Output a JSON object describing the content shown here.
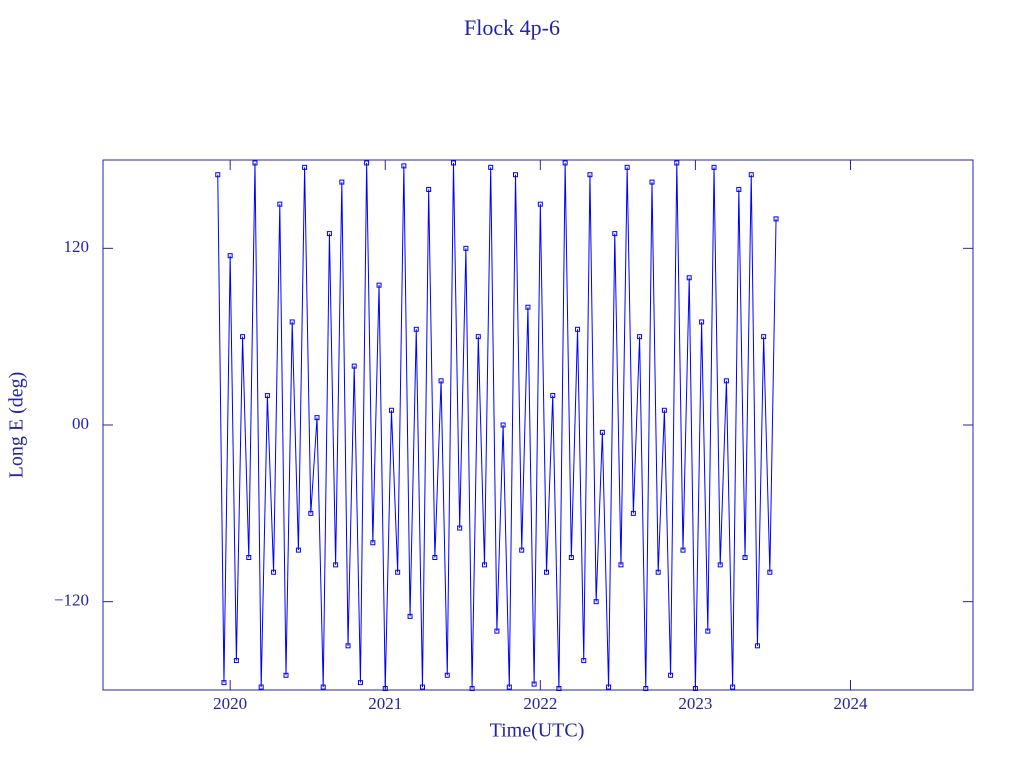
{
  "chart_data": {
    "type": "line",
    "title": "Flock 4p-6",
    "xlabel": "Time(UTC)",
    "ylabel": "Long E (deg)",
    "xlim": [
      2019.18,
      2024.79
    ],
    "xticks": [
      2020,
      2021,
      2022,
      2023,
      2024
    ],
    "ylim": [
      -180,
      180
    ],
    "yticks": [
      {
        "value": -120,
        "label": "−120"
      },
      {
        "value": 0,
        "label": "00"
      },
      120
    ],
    "x": [
      2019.92,
      2019.96,
      2020,
      2020.04,
      2020.08,
      2020.12,
      2020.16,
      2020.2,
      2020.24,
      2020.28,
      2020.32,
      2020.36,
      2020.4,
      2020.44,
      2020.48,
      2020.52,
      2020.56,
      2020.6,
      2020.64,
      2020.68,
      2020.72,
      2020.76,
      2020.8,
      2020.84,
      2020.88,
      2020.92,
      2020.96,
      2021,
      2021.04,
      2021.08,
      2021.12,
      2021.16,
      2021.2,
      2021.24,
      2021.28,
      2021.32,
      2021.36,
      2021.4,
      2021.44,
      2021.48,
      2021.52,
      2021.56,
      2021.6,
      2021.64,
      2021.68,
      2021.72,
      2021.76,
      2021.8,
      2021.84,
      2021.88,
      2021.92,
      2021.96,
      2022,
      2022.04,
      2022.08,
      2022.12,
      2022.16,
      2022.2,
      2022.24,
      2022.28,
      2022.32,
      2022.36,
      2022.4,
      2022.44,
      2022.48,
      2022.52,
      2022.56,
      2022.6,
      2022.64,
      2022.68,
      2022.72,
      2022.76,
      2022.8,
      2022.84,
      2022.88,
      2022.92,
      2022.96,
      2023,
      2023.04,
      2023.08,
      2023.12,
      2023.16,
      2023.2,
      2023.24,
      2023.28,
      2023.32,
      2023.36,
      2023.4,
      2023.44,
      2023.48,
      2023.52
    ],
    "series": [
      {
        "color": "#0000ff",
        "values": [
          170,
          -175,
          115,
          -160,
          60,
          -90,
          178,
          -178,
          20,
          -100,
          150,
          -170,
          70,
          -85,
          175,
          -60,
          5,
          -178,
          130,
          -95,
          165,
          -150,
          40,
          -175,
          178,
          -80,
          95,
          -179,
          10,
          -100,
          176,
          -130,
          65,
          -178,
          160,
          -90,
          30,
          -170,
          178,
          -70,
          120,
          -179,
          60,
          -95,
          175,
          -140,
          0,
          -178,
          170,
          -85,
          80,
          -176,
          150,
          -100,
          20,
          -179,
          178,
          -90,
          65,
          -160,
          170,
          -120,
          -5,
          -178,
          130,
          -95,
          175,
          -60,
          60,
          -179,
          165,
          -100,
          10,
          -170,
          178,
          -85,
          100,
          -179,
          70,
          -140,
          175,
          -95,
          30,
          -178,
          160,
          -90,
          170,
          -150,
          60,
          -100,
          140
        ]
      }
    ],
    "text_color": "#2323a8"
  }
}
